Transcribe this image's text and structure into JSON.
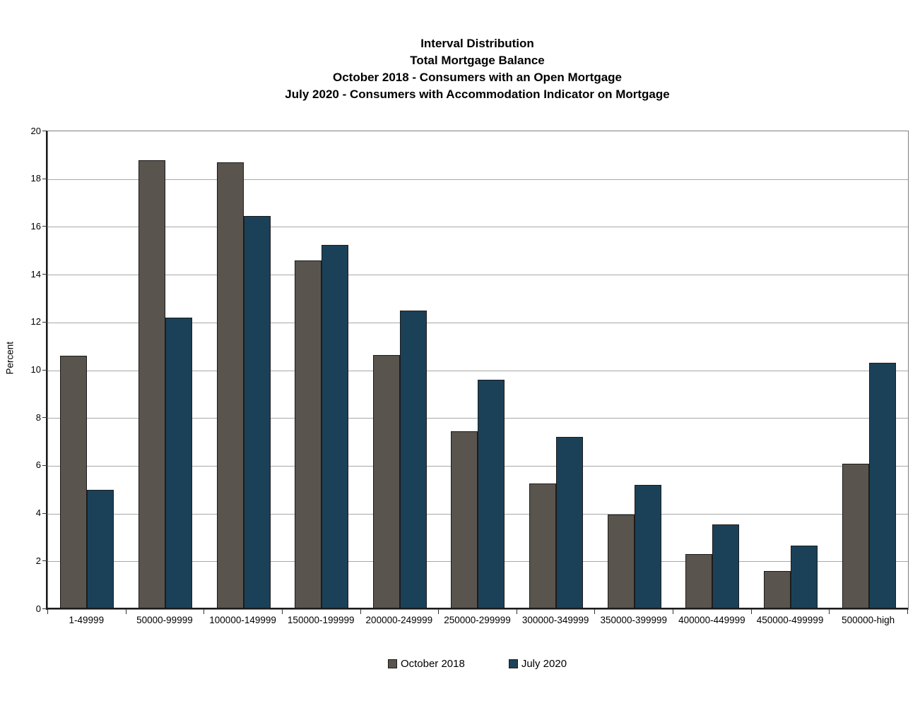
{
  "chart_data": {
    "type": "bar",
    "title_lines": [
      "Interval Distribution",
      "Total Mortgage Balance",
      "October 2018 - Consumers with an Open Mortgage",
      "July 2020 - Consumers with Accommodation Indicator on Mortgage"
    ],
    "ylabel": "Percent",
    "xlabel": "",
    "ylim": [
      0,
      20
    ],
    "ytick_step": 2,
    "ytick_labels": [
      "0",
      "2",
      "4",
      "6",
      "8",
      "10",
      "12",
      "14",
      "16",
      "18",
      "20"
    ],
    "grid": "horizontal",
    "legend_position": "bottom",
    "categories": [
      "1-49999",
      "50000-99999",
      "100000-149999",
      "150000-199999",
      "200000-249999",
      "250000-299999",
      "300000-349999",
      "350000-399999",
      "400000-449999",
      "450000-499999",
      "500000-high"
    ],
    "series": [
      {
        "name": "October 2018",
        "color": "#59544D",
        "values": [
          10.6,
          18.8,
          18.7,
          14.6,
          10.65,
          7.45,
          5.25,
          3.95,
          2.3,
          1.6,
          6.1
        ]
      },
      {
        "name": "July 2020",
        "color": "#1B4159",
        "values": [
          5.0,
          12.2,
          16.45,
          15.25,
          12.5,
          9.6,
          7.2,
          5.2,
          3.55,
          2.65,
          10.3
        ]
      }
    ]
  },
  "colors": {
    "axis": "#1a1a1a",
    "gridline": "#a8a8a8",
    "plot_border": "#7e7e7e",
    "bar_border": "#1c1c1c"
  }
}
